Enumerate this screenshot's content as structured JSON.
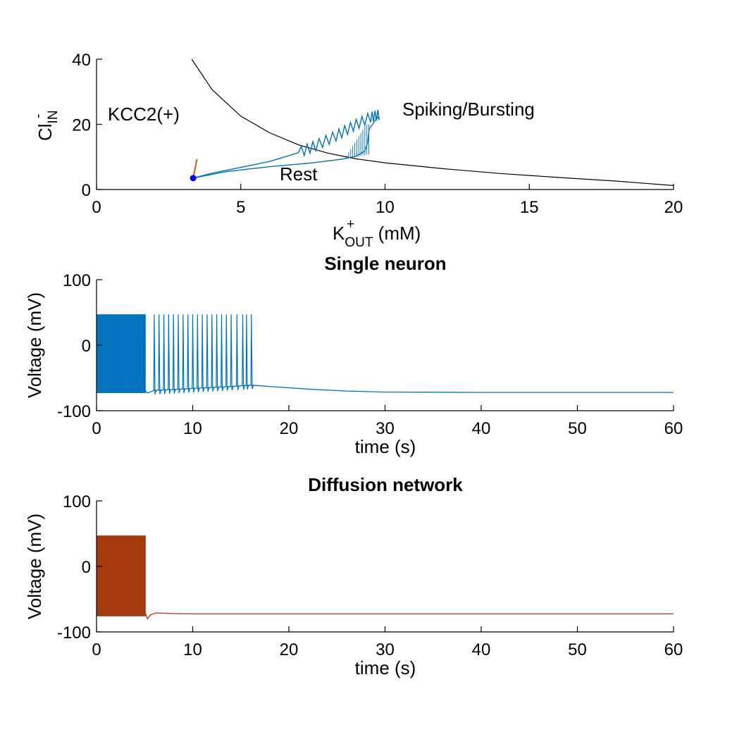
{
  "colors": {
    "blue": "#0072BD",
    "orange": "#D95319",
    "network": "#A2380B",
    "dot": "#0000FF",
    "curve": "#000000"
  },
  "chart_data": [
    {
      "type": "line",
      "xlabel": {
        "base": "K",
        "sup": "+",
        "sub": "OUT",
        "unit": " (mM)"
      },
      "ylabel": {
        "base": "Cl",
        "sup": "-",
        "sub": "IN"
      },
      "xlim": [
        0,
        20
      ],
      "ylim": [
        0,
        40
      ],
      "xticks": [
        "0",
        "5",
        "10",
        "15",
        "20"
      ],
      "yticks": [
        "0",
        "20",
        "40"
      ],
      "annotations": {
        "kcc2": "KCC2(+)",
        "spiking": "Spiking/Bursting",
        "rest": "Rest"
      },
      "nullcline": {
        "x": [
          3.3,
          4,
          5,
          6,
          7,
          8,
          9,
          10,
          12,
          14,
          16,
          18,
          20
        ],
        "y": [
          40,
          30.7,
          22.5,
          17.4,
          13.7,
          11.2,
          9.4,
          8.2,
          6.4,
          4.9,
          3.7,
          2.6,
          1.2
        ]
      },
      "trajectory_single": {
        "x": [
          3.35,
          4.5,
          6,
          7.5,
          8.5,
          9.0,
          9.3,
          9.4,
          9.45,
          9.8,
          9.5,
          8.9,
          8.3,
          7.6,
          7.0,
          6.0,
          5.0,
          4.0,
          3.35
        ],
        "y": [
          3.5,
          5.5,
          7.0,
          8.2,
          9.3,
          10.2,
          11.8,
          14.5,
          18.5,
          23,
          22.2,
          19.5,
          16.5,
          13.5,
          11.3,
          8.6,
          6.8,
          5.0,
          3.5
        ]
      },
      "trajectory_network": {
        "x": [
          3.35,
          3.38,
          3.42,
          3.45,
          3.48
        ],
        "y": [
          3.5,
          5.0,
          6.5,
          8.0,
          9.3
        ]
      },
      "rest_point": {
        "x": 3.35,
        "y": 3.5
      }
    },
    {
      "type": "line",
      "title": "Single neuron",
      "xlabel": "time (s)",
      "ylabel": "Voltage (mV)",
      "xlim": [
        0,
        60
      ],
      "ylim": [
        -100,
        100
      ],
      "xticks": [
        "0",
        "10",
        "20",
        "30",
        "40",
        "50",
        "60"
      ],
      "yticks": [
        "-100",
        "0",
        "100"
      ],
      "dense_spiking": {
        "t_start": 0,
        "t_end": 5.1,
        "v_low": -73,
        "v_high": 47
      },
      "spike_times": [
        6.0,
        6.5,
        7.0,
        7.5,
        8.0,
        8.5,
        9.0,
        9.5,
        10.0,
        10.5,
        11.0,
        11.5,
        12.0,
        12.5,
        13.0,
        13.5,
        14.0,
        14.6,
        15.2,
        15.6,
        16.1
      ],
      "spike_peak": 47,
      "baseline": {
        "t": [
          5.1,
          5.3,
          6.0,
          10,
          14,
          16.1,
          18,
          22,
          26,
          30,
          40,
          50,
          60
        ],
        "v": [
          -70,
          -73,
          -69,
          -66,
          -63,
          -61,
          -63,
          -67,
          -70,
          -71.5,
          -72,
          -72,
          -72
        ]
      }
    },
    {
      "type": "line",
      "title": "Diffusion network",
      "xlabel": "time (s)",
      "ylabel": "Voltage (mV)",
      "xlim": [
        0,
        60
      ],
      "ylim": [
        -100,
        100
      ],
      "xticks": [
        "0",
        "10",
        "20",
        "30",
        "40",
        "50",
        "60"
      ],
      "yticks": [
        "-100",
        "0",
        "100"
      ],
      "dense_spiking": {
        "t_start": 0,
        "t_end": 5.1,
        "v_low": -76,
        "v_high": 47
      },
      "baseline": {
        "t": [
          5.1,
          5.3,
          5.6,
          6.2,
          8,
          10,
          20,
          30,
          40,
          50,
          60
        ],
        "v": [
          -72,
          -80,
          -74,
          -71,
          -72,
          -72.5,
          -72.5,
          -72.5,
          -72.5,
          -72.5,
          -72.5
        ]
      }
    }
  ]
}
